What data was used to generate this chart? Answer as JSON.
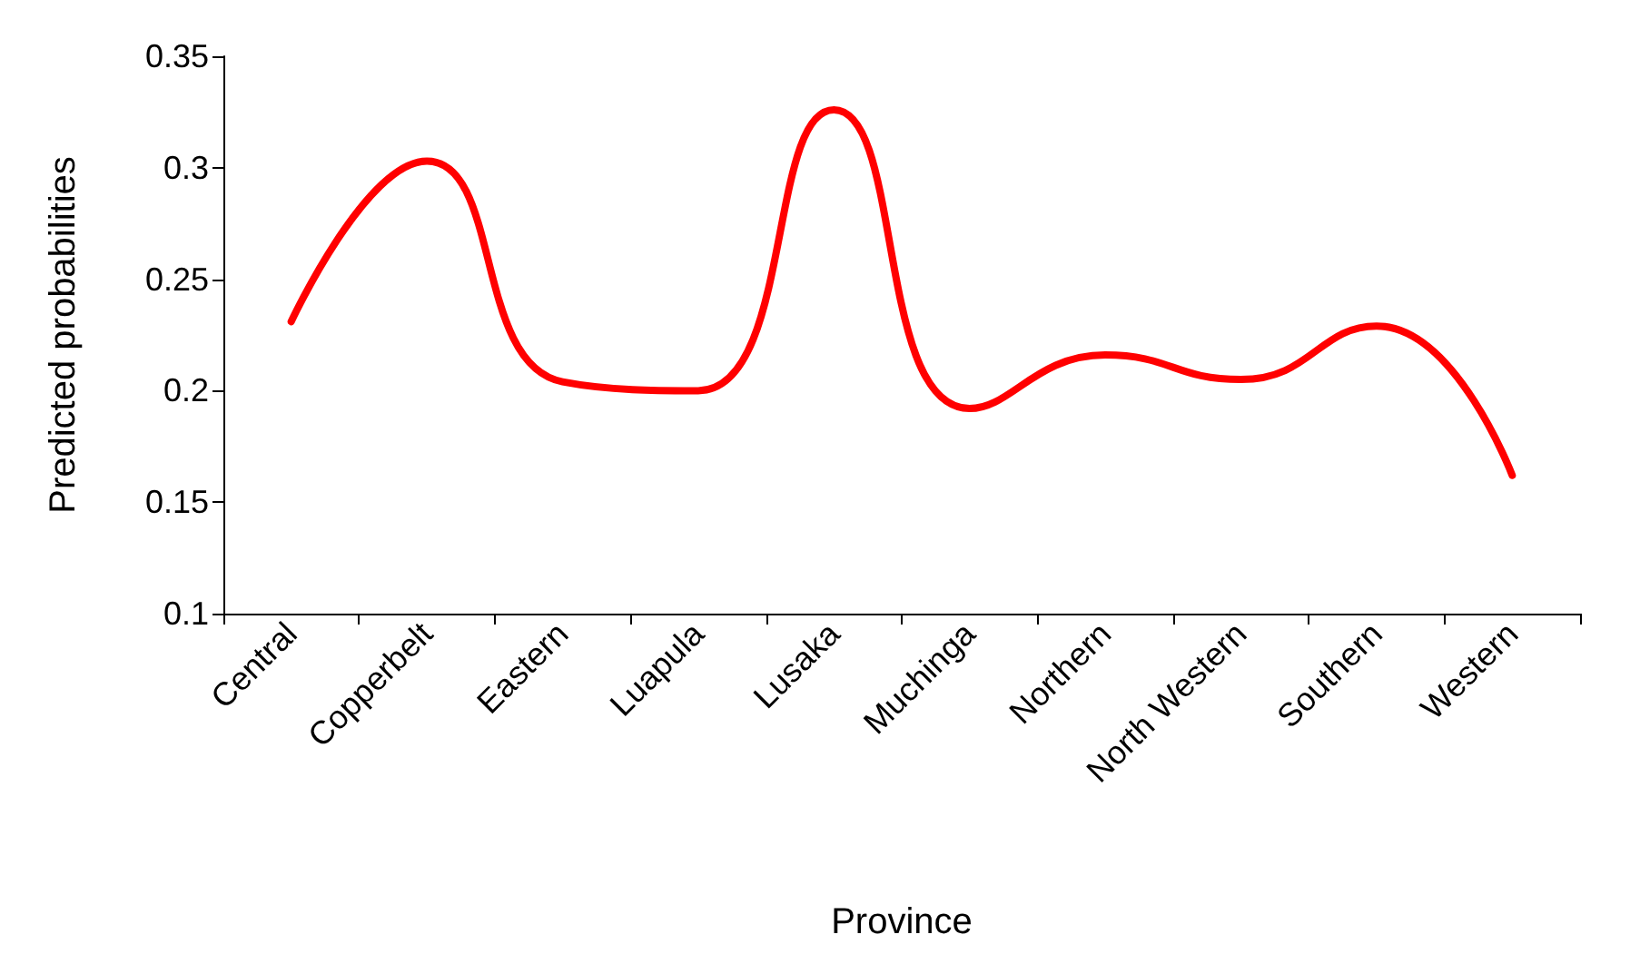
{
  "chart_data": {
    "type": "line",
    "xlabel": "Province",
    "ylabel": "Predicted probabilities",
    "categories": [
      "Central",
      "Copperbelt",
      "Eastern",
      "Luapula",
      "Lusaka",
      "Muchinga",
      "Northern",
      "North Western",
      "Southern",
      "Western"
    ],
    "series": [
      {
        "color": "#ff0000",
        "values": [
          0.231,
          0.303,
          0.204,
          0.2,
          0.326,
          0.192,
          0.216,
          0.205,
          0.229,
          0.162
        ]
      }
    ],
    "ylim": [
      0.1,
      0.35
    ],
    "yticks": [
      0.1,
      0.15,
      0.2,
      0.25,
      0.3,
      0.35
    ],
    "grid": false,
    "marker": "none",
    "line_style": "solid"
  }
}
